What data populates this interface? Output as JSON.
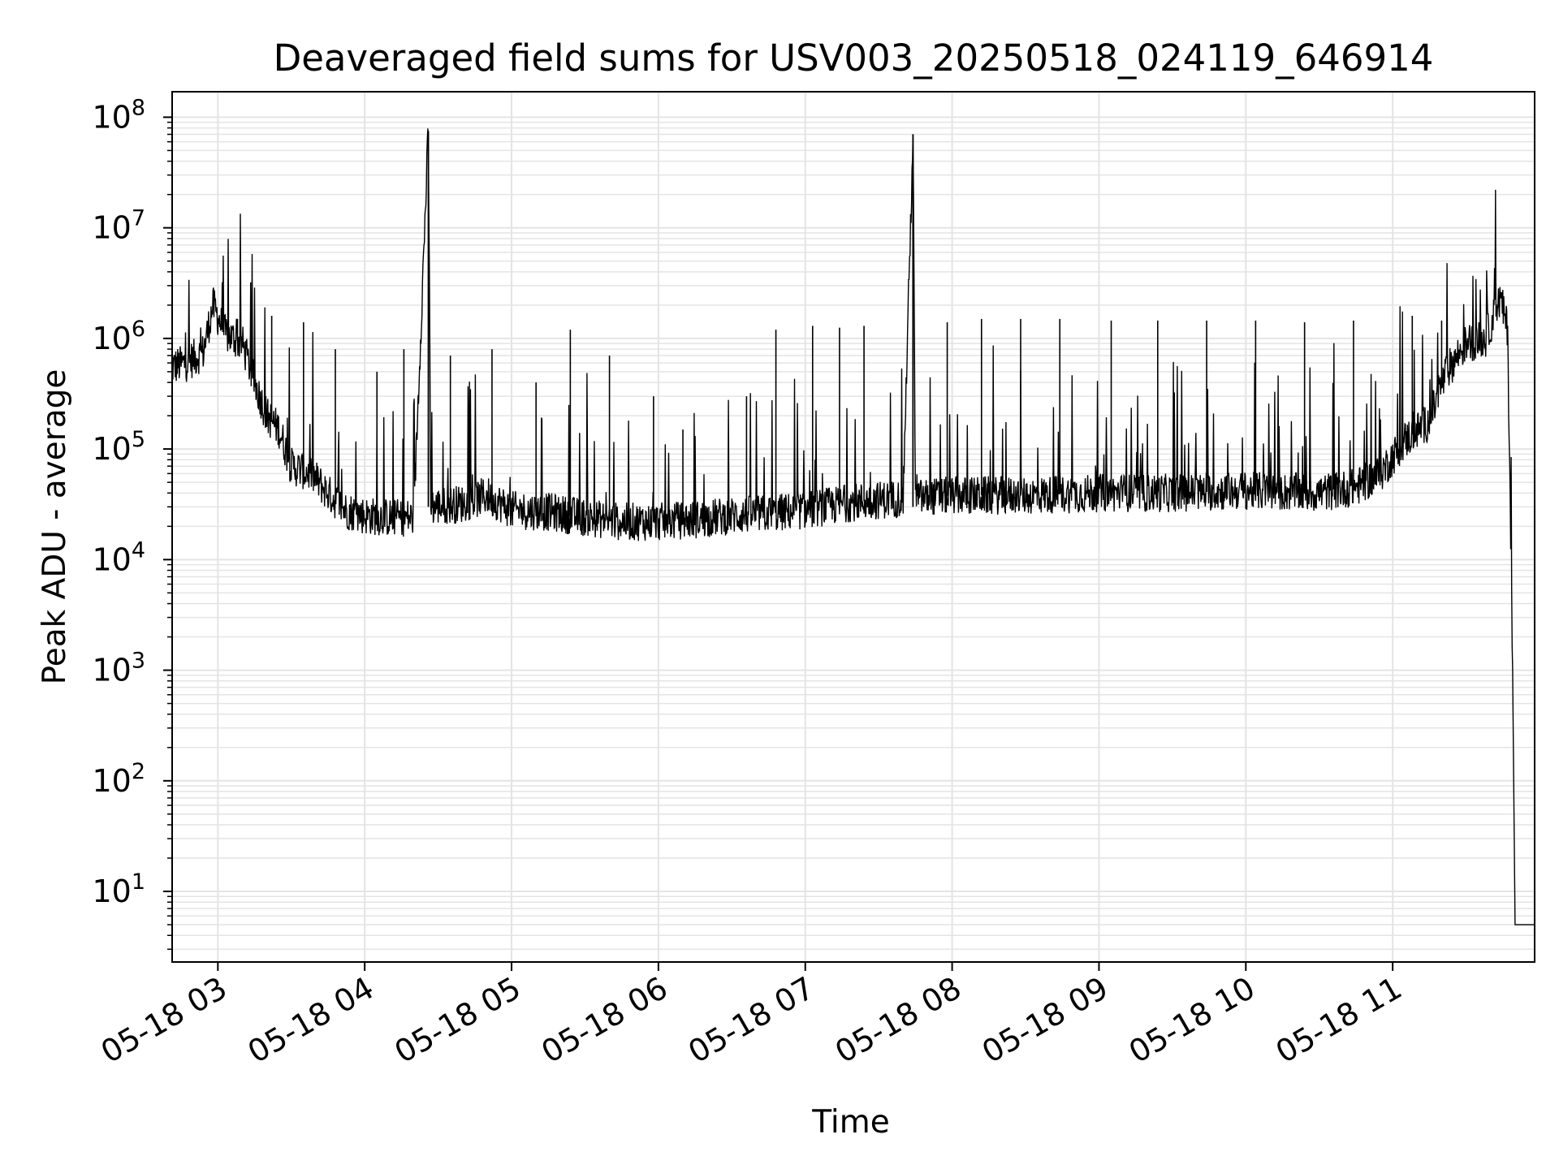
{
  "chart_data": {
    "type": "line",
    "title": "Deaveraged field sums for USV003_20250518_024119_646914",
    "xlabel": "Time",
    "ylabel": "Peak ADU - average",
    "yscale": "log",
    "ylim": [
      2.3,
      170000000
    ],
    "xlim": [
      "2025-05-18 02:41:19",
      "2025-05-18 11:58:00"
    ],
    "grid": true,
    "line_color": "#000000",
    "grid_color": "#e4e4e4",
    "x_ticks": [
      {
        "t": "2025-05-18 03:00",
        "label": "05-18 03"
      },
      {
        "t": "2025-05-18 04:00",
        "label": "05-18 04"
      },
      {
        "t": "2025-05-18 05:00",
        "label": "05-18 05"
      },
      {
        "t": "2025-05-18 06:00",
        "label": "05-18 06"
      },
      {
        "t": "2025-05-18 07:00",
        "label": "05-18 07"
      },
      {
        "t": "2025-05-18 08:00",
        "label": "05-18 08"
      },
      {
        "t": "2025-05-18 09:00",
        "label": "05-18 09"
      },
      {
        "t": "2025-05-18 10:00",
        "label": "05-18 10"
      },
      {
        "t": "2025-05-18 11:00",
        "label": "05-18 11"
      }
    ],
    "y_ticks": [
      {
        "value": 10,
        "base": "10",
        "exp": "1"
      },
      {
        "value": 100,
        "base": "10",
        "exp": "2"
      },
      {
        "value": 1000,
        "base": "10",
        "exp": "3"
      },
      {
        "value": 10000,
        "base": "10",
        "exp": "4"
      },
      {
        "value": 100000,
        "base": "10",
        "exp": "5"
      },
      {
        "value": 1000000,
        "base": "10",
        "exp": "6"
      },
      {
        "value": 10000000,
        "base": "10",
        "exp": "7"
      },
      {
        "value": 100000000,
        "base": "10",
        "exp": "8"
      }
    ],
    "series": [
      {
        "points": [
          [
            "2025-05-18 02:41",
            550000
          ],
          [
            "2025-05-18 02:47",
            600000
          ],
          [
            "2025-05-18 02:54",
            750000
          ],
          [
            "2025-05-18 02:58",
            2000000
          ],
          [
            "2025-05-18 03:03",
            1100000
          ],
          [
            "2025-05-18 03:10",
            900000
          ],
          [
            "2025-05-18 03:15",
            400000
          ],
          [
            "2025-05-18 03:20",
            200000
          ],
          [
            "2025-05-18 03:25",
            150000
          ],
          [
            "2025-05-18 03:30",
            70000
          ],
          [
            "2025-05-18 03:38",
            60000
          ],
          [
            "2025-05-18 03:45",
            40000
          ],
          [
            "2025-05-18 03:52",
            28000
          ],
          [
            "2025-05-18 04:00",
            25000
          ],
          [
            "2025-05-18 04:10",
            24000
          ],
          [
            "2025-05-18 04:20",
            24000
          ],
          [
            "2025-05-18 04:26",
            75000000
          ],
          [
            "2025-05-18 04:27",
            30000
          ],
          [
            "2025-05-18 04:40",
            32000
          ],
          [
            "2025-05-18 04:50",
            38000
          ],
          [
            "2025-05-18 05:00",
            28000
          ],
          [
            "2025-05-18 05:15",
            27000
          ],
          [
            "2025-05-18 05:30",
            24000
          ],
          [
            "2025-05-18 05:45",
            22000
          ],
          [
            "2025-05-18 06:00",
            22000
          ],
          [
            "2025-05-18 06:15",
            23000
          ],
          [
            "2025-05-18 06:30",
            25000
          ],
          [
            "2025-05-18 06:45",
            26000
          ],
          [
            "2025-05-18 07:00",
            28000
          ],
          [
            "2025-05-18 07:20",
            33000
          ],
          [
            "2025-05-18 07:40",
            36000
          ],
          [
            "2025-05-18 07:44",
            70000000
          ],
          [
            "2025-05-18 07:45",
            36000
          ],
          [
            "2025-05-18 08:00",
            38000
          ],
          [
            "2025-05-18 08:30",
            38000
          ],
          [
            "2025-05-18 09:00",
            40000
          ],
          [
            "2025-05-18 09:30",
            40000
          ],
          [
            "2025-05-18 10:00",
            42000
          ],
          [
            "2025-05-18 10:30",
            40000
          ],
          [
            "2025-05-18 10:45",
            45000
          ],
          [
            "2025-05-18 10:55",
            60000
          ],
          [
            "2025-05-18 11:05",
            120000
          ],
          [
            "2025-05-18 11:15",
            180000
          ],
          [
            "2025-05-18 11:22",
            500000
          ],
          [
            "2025-05-18 11:30",
            900000
          ],
          [
            "2025-05-18 11:38",
            1000000
          ],
          [
            "2025-05-18 11:44",
            2300000
          ],
          [
            "2025-05-18 11:47",
            1200000
          ],
          [
            "2025-05-18 11:49",
            1000
          ],
          [
            "2025-05-18 11:50",
            5
          ],
          [
            "2025-05-18 11:58",
            5
          ]
        ],
        "spikes": [
          [
            "2025-05-18 03:08",
            1500000
          ],
          [
            "2025-05-18 03:22",
            1600000
          ],
          [
            "2025-05-18 03:35",
            1400000
          ],
          [
            "2025-05-18 03:48",
            800000
          ],
          [
            "2025-05-18 04:05",
            500000
          ],
          [
            "2025-05-18 04:16",
            800000
          ],
          [
            "2025-05-18 04:35",
            700000
          ],
          [
            "2025-05-18 04:52",
            800000
          ],
          [
            "2025-05-18 05:10",
            400000
          ],
          [
            "2025-05-18 05:24",
            1200000
          ],
          [
            "2025-05-18 05:40",
            700000
          ],
          [
            "2025-05-18 05:58",
            300000
          ],
          [
            "2025-05-18 06:10",
            150000
          ],
          [
            "2025-05-18 06:36",
            300000
          ],
          [
            "2025-05-18 06:48",
            1200000
          ],
          [
            "2025-05-18 07:03",
            1300000
          ],
          [
            "2025-05-18 07:14",
            1250000
          ],
          [
            "2025-05-18 07:24",
            1300000
          ],
          [
            "2025-05-18 07:58",
            1400000
          ],
          [
            "2025-05-18 08:12",
            1500000
          ],
          [
            "2025-05-18 08:28",
            1500000
          ],
          [
            "2025-05-18 08:44",
            1500000
          ],
          [
            "2025-05-18 09:05",
            1450000
          ],
          [
            "2025-05-18 09:24",
            1450000
          ],
          [
            "2025-05-18 09:44",
            1450000
          ],
          [
            "2025-05-18 10:04",
            1450000
          ],
          [
            "2025-05-18 10:24",
            1400000
          ],
          [
            "2025-05-18 10:44",
            1450000
          ],
          [
            "2025-05-18 11:08",
            1600000
          ],
          [
            "2025-05-18 11:20",
            1450000
          ]
        ]
      }
    ]
  }
}
